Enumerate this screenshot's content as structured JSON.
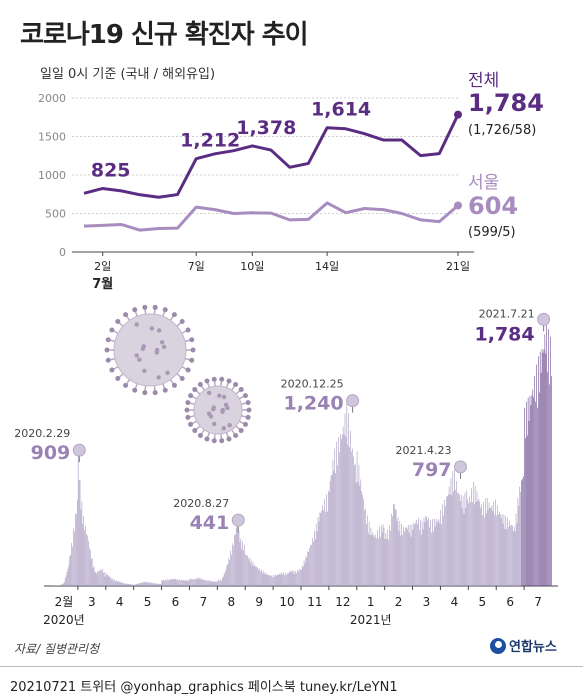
{
  "title": "코로나19 신규 확진자 추이",
  "subtitle": "일일 0시 기준 (국내 / 해외유입)",
  "colors": {
    "nationwide": "#5b2d82",
    "seoul": "#a88bbf",
    "bars": "#a496bd",
    "bars_dark": "#6b4a8e",
    "grid": "#cfcfcf",
    "virus": "#8b6e97"
  },
  "chart_data": [
    {
      "type": "line",
      "ylim": [
        0,
        2000
      ],
      "yticks": [
        "0",
        "500",
        "1000",
        "1500",
        "2000"
      ],
      "x_labels": [
        {
          "day": 2,
          "label": "2일"
        },
        {
          "day": 7,
          "label": "7일"
        },
        {
          "day": 10,
          "label": "10일"
        },
        {
          "day": 14,
          "label": "14일"
        },
        {
          "day": 21,
          "label": "21일"
        }
      ],
      "month_label": {
        "day": 2,
        "label": "7월"
      },
      "x": [
        1,
        2,
        3,
        4,
        5,
        6,
        7,
        8,
        9,
        10,
        11,
        12,
        13,
        14,
        15,
        16,
        17,
        18,
        19,
        20,
        21
      ],
      "series": [
        {
          "name": "전체",
          "key": "nationwide",
          "values": [
            762,
            825,
            794,
            743,
            711,
            746,
            1212,
            1275,
            1316,
            1378,
            1324,
            1100,
            1150,
            1614,
            1600,
            1536,
            1455,
            1454,
            1252,
            1278,
            1784
          ],
          "annotations": [
            {
              "day": 2,
              "text": "825"
            },
            {
              "day": 7,
              "text": "1,212"
            },
            {
              "day": 10,
              "text": "1,378"
            },
            {
              "day": 14,
              "text": "1,614"
            }
          ],
          "end_value": "1,784",
          "end_detail": "(1,726/58)"
        },
        {
          "name": "서울",
          "key": "seoul",
          "values": [
            336,
            345,
            357,
            284,
            305,
            310,
            583,
            550,
            500,
            509,
            505,
            417,
            424,
            637,
            511,
            565,
            550,
            500,
            417,
            395,
            604
          ],
          "end_value": "604",
          "end_detail": "(599/5)"
        }
      ]
    },
    {
      "type": "bar",
      "ylim": [
        0,
        1900
      ],
      "x_labels": [
        "2월",
        "3",
        "4",
        "5",
        "6",
        "7",
        "8",
        "9",
        "10",
        "11",
        "12",
        "1",
        "2",
        "3",
        "4",
        "5",
        "6",
        "7"
      ],
      "year_labels": [
        "2020년",
        "2021년"
      ],
      "monthly_profile": [
        {
          "month": "2월",
          "values": [
            0,
            2,
            5,
            20,
            130,
            340,
            600
          ]
        },
        {
          "month": "3",
          "values": [
            909,
            600,
            450,
            370,
            250,
            150,
            90,
            110,
            120,
            80
          ]
        },
        {
          "month": "4",
          "values": [
            90,
            60,
            40,
            30,
            20,
            15,
            10
          ]
        },
        {
          "month": "5",
          "values": [
            8,
            20,
            30,
            25,
            18,
            15
          ]
        },
        {
          "month": "6",
          "values": [
            40,
            45,
            48,
            50,
            45,
            40,
            40
          ]
        },
        {
          "month": "7",
          "values": [
            50,
            48,
            60,
            45,
            40,
            34,
            30
          ]
        },
        {
          "month": "8",
          "values": [
            40,
            45,
            103,
            200,
            300,
            441,
            320,
            280
          ]
        },
        {
          "month": "9",
          "values": [
            230,
            190,
            150,
            120,
            100,
            80,
            70
          ]
        },
        {
          "month": "10",
          "values": [
            75,
            80,
            95,
            85,
            110,
            100,
            120
          ]
        },
        {
          "month": "11",
          "values": [
            125,
            200,
            280,
            380,
            500,
            580,
            640
          ]
        },
        {
          "month": "12",
          "values": [
            700,
            900,
            1000,
            1100,
            1240,
            1000,
            800
          ]
        },
        {
          "month": "1",
          "values": [
            900,
            700,
            500,
            400,
            350,
            400,
            430
          ]
        },
        {
          "month": "2",
          "values": [
            350,
            400,
            600,
            450,
            400,
            420,
            410
          ]
        },
        {
          "month": "3",
          "values": [
            430,
            470,
            430,
            500,
            440,
            460,
            470
          ]
        },
        {
          "month": "4",
          "values": [
            510,
            600,
            700,
            797,
            650,
            600,
            660
          ]
        },
        {
          "month": "5",
          "values": [
            600,
            700,
            640,
            550,
            600,
            560,
            580
          ]
        },
        {
          "month": "6",
          "values": [
            560,
            500,
            470,
            450,
            400,
            650,
            800
          ]
        },
        {
          "month": "7",
          "values": [
            1200,
            1300,
            1450,
            1600,
            1784,
            1650
          ]
        }
      ],
      "annotations": [
        {
          "date": "2020.2.29",
          "value": "909",
          "month_index": 1,
          "pos": 0.05
        },
        {
          "date": "2020.8.27",
          "value": "441",
          "month_index": 6,
          "pos": 0.75
        },
        {
          "date": "2020.12.25",
          "value": "1,240",
          "month_index": 10,
          "pos": 0.85
        },
        {
          "date": "2021.4.23",
          "value": "797",
          "month_index": 14,
          "pos": 0.72
        },
        {
          "date": "2021.7.21",
          "value": "1,784",
          "month_index": 17,
          "pos": 0.7
        }
      ]
    }
  ],
  "source": "자료/ 질병관리청",
  "logo": "연합뉴스",
  "footer": "20210721 트위터 @yonhap_graphics  페이스북 tuney.kr/LeYN1"
}
